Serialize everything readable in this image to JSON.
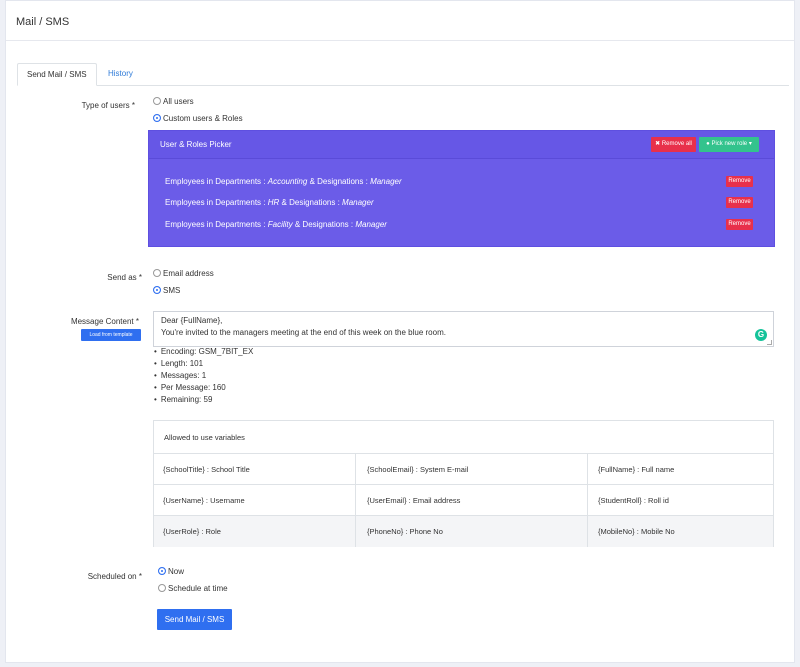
{
  "header": {
    "title": "Mail / SMS"
  },
  "tabs": [
    {
      "label": "Send Mail / SMS"
    },
    {
      "label": "History"
    }
  ],
  "type_of_users": {
    "label": "Type of users",
    "required": "*",
    "options": [
      "All users",
      "Custom users & Roles"
    ],
    "selected": "Custom users & Roles"
  },
  "picker": {
    "title": "User & Roles Picker",
    "remove_all_label": "Remove all",
    "pick_new_role_label": "Pick new role",
    "rows": [
      {
        "prefix": "Employees in Departments :",
        "department": "Accounting",
        "mid": "& Designations :",
        "designation": "Manager",
        "remove_label": "Remove"
      },
      {
        "prefix": "Employees in Departments :",
        "department": "HR",
        "mid": "& Designations :",
        "designation": "Manager",
        "remove_label": "Remove"
      },
      {
        "prefix": "Employees in Departments :",
        "department": "Facility",
        "mid": "& Designations :",
        "designation": "Manager",
        "remove_label": "Remove"
      }
    ]
  },
  "send_as": {
    "label": "Send as",
    "required": "*",
    "options": [
      "Email address",
      "SMS"
    ],
    "selected": "SMS"
  },
  "message": {
    "label": "Message Content",
    "required": "*",
    "template_button": "Load from template",
    "lines": [
      "Dear {FullName},",
      "You're invited to the managers meeting at the end of this week on the blue room."
    ],
    "grammarly_glyph": "G",
    "stats": [
      "Encoding: GSM_7BIT_EX",
      "Length: 101",
      "Messages: 1",
      "Per Message: 160",
      "Remaining: 59"
    ]
  },
  "variables": {
    "heading": "Allowed to use variables",
    "rows": [
      [
        "{SchoolTitle} : School Title",
        "{SchoolEmail} : System E-mail",
        "{FullName} : Full name"
      ],
      [
        "{UserName} : Username",
        "{UserEmail} : Email address",
        "{StudentRoll} : Roll id"
      ],
      [
        "{UserRole} : Role",
        "{PhoneNo} : Phone No",
        "{MobileNo} : Mobile No"
      ]
    ]
  },
  "scheduled": {
    "label": "Scheduled on",
    "required": "*",
    "options": [
      "Now",
      "Schedule at time"
    ],
    "selected": "Now"
  },
  "submit": {
    "label": "Send Mail / SMS"
  },
  "colors": {
    "primary": "#2f6ff0",
    "picker_bg": "#6b5ce8",
    "danger": "#e8304b",
    "success": "#33c38d"
  }
}
